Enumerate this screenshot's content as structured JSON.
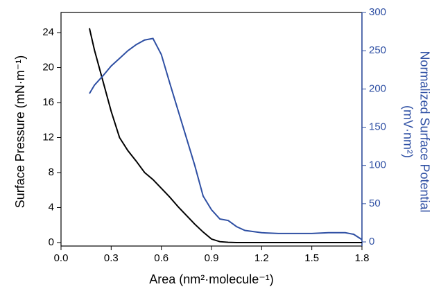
{
  "chart_data": {
    "type": "line",
    "xlabel": "Area (nm²·molecule⁻¹)",
    "ylabel": "Surface Pressure (mN·m⁻¹)",
    "y2label": [
      "Normalized Surface Potential",
      "(mV·nm²)"
    ],
    "x": [
      0.17,
      0.2,
      0.25,
      0.3,
      0.35,
      0.4,
      0.45,
      0.5,
      0.55,
      0.6,
      0.65,
      0.7,
      0.75,
      0.8,
      0.85,
      0.9,
      0.95,
      1.0,
      1.05,
      1.1,
      1.2,
      1.3,
      1.4,
      1.5,
      1.6,
      1.7,
      1.75,
      1.8
    ],
    "series": [
      {
        "name": "Surface Pressure",
        "color": "#000000",
        "axis": "y",
        "values": [
          24.5,
          22,
          18.5,
          15,
          12,
          10.5,
          9.3,
          8,
          7.2,
          6.2,
          5.2,
          4.1,
          3.1,
          2.1,
          1.2,
          0.4,
          0.1,
          0.03,
          0,
          0,
          0,
          0,
          0,
          0,
          0,
          0,
          0,
          0
        ]
      },
      {
        "name": "Normalized Surface Potential",
        "color": "#2e4fa3",
        "axis": "y2",
        "values": [
          194,
          205,
          217,
          230,
          240,
          250,
          258,
          264,
          266,
          245,
          208,
          172,
          136,
          100,
          60,
          42,
          30,
          28,
          20,
          15,
          12,
          11,
          11,
          11,
          12,
          12,
          10,
          3
        ]
      }
    ],
    "xlim": [
      0,
      1.8
    ],
    "xticks": [
      {
        "value": 0,
        "label": "0.0"
      },
      0.3,
      0.6,
      0.9,
      1.2,
      1.5,
      1.8
    ],
    "ylim": [
      -0.4,
      26.3
    ],
    "yticks": [
      0,
      4,
      8,
      12,
      16,
      20,
      24
    ],
    "y2lim": [
      -5.4,
      300
    ],
    "y2ticks": [
      0,
      50,
      100,
      150,
      200,
      250,
      300
    ],
    "y2color": "#2e4fa3"
  }
}
